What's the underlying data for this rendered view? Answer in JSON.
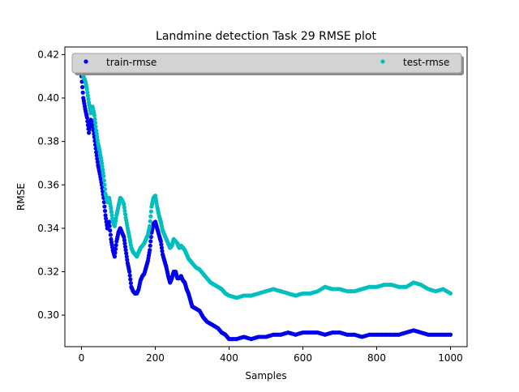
{
  "chart_data": {
    "type": "scatter",
    "title": "Landmine detection Task 29 RMSE plot",
    "xlabel": "Samples",
    "ylabel": "RMSE",
    "xlim": [
      -45,
      1045
    ],
    "ylim": [
      0.2855,
      0.4235
    ],
    "xticks": [
      0,
      200,
      400,
      600,
      800,
      1000
    ],
    "yticks": [
      0.3,
      0.32,
      0.34,
      0.36,
      0.38,
      0.4,
      0.42
    ],
    "xtick_labels": [
      "0",
      "200",
      "400",
      "600",
      "800",
      "1000"
    ],
    "ytick_labels": [
      "0.30",
      "0.32",
      "0.34",
      "0.36",
      "0.38",
      "0.40",
      "0.42"
    ],
    "grid": false,
    "legend_position": "top (spanning)",
    "series": [
      {
        "name": "train-rmse",
        "color": "#0000ee",
        "x": [
          0,
          5,
          10,
          15,
          20,
          25,
          30,
          35,
          40,
          45,
          50,
          55,
          60,
          65,
          70,
          75,
          80,
          85,
          90,
          95,
          100,
          105,
          110,
          115,
          120,
          125,
          130,
          135,
          140,
          145,
          150,
          155,
          160,
          165,
          170,
          175,
          180,
          185,
          190,
          195,
          200,
          205,
          210,
          215,
          220,
          225,
          230,
          235,
          240,
          245,
          250,
          255,
          260,
          265,
          270,
          275,
          280,
          285,
          290,
          295,
          300,
          310,
          320,
          330,
          340,
          350,
          360,
          370,
          380,
          390,
          400,
          420,
          440,
          460,
          480,
          500,
          520,
          540,
          560,
          580,
          600,
          620,
          640,
          660,
          680,
          700,
          720,
          740,
          760,
          780,
          800,
          820,
          840,
          860,
          880,
          900,
          920,
          940,
          960,
          980,
          1000
        ],
        "values": [
          0.41,
          0.4,
          0.395,
          0.391,
          0.384,
          0.39,
          0.388,
          0.382,
          0.375,
          0.369,
          0.365,
          0.36,
          0.354,
          0.346,
          0.34,
          0.343,
          0.335,
          0.33,
          0.327,
          0.334,
          0.338,
          0.34,
          0.338,
          0.336,
          0.33,
          0.324,
          0.32,
          0.313,
          0.311,
          0.31,
          0.31,
          0.312,
          0.316,
          0.318,
          0.319,
          0.322,
          0.325,
          0.33,
          0.338,
          0.342,
          0.343,
          0.34,
          0.337,
          0.334,
          0.328,
          0.325,
          0.322,
          0.318,
          0.315,
          0.317,
          0.32,
          0.32,
          0.317,
          0.317,
          0.318,
          0.316,
          0.315,
          0.312,
          0.31,
          0.307,
          0.304,
          0.303,
          0.302,
          0.299,
          0.297,
          0.296,
          0.295,
          0.294,
          0.292,
          0.291,
          0.289,
          0.289,
          0.29,
          0.289,
          0.29,
          0.29,
          0.291,
          0.291,
          0.292,
          0.291,
          0.292,
          0.292,
          0.292,
          0.291,
          0.292,
          0.292,
          0.291,
          0.291,
          0.29,
          0.291,
          0.291,
          0.291,
          0.291,
          0.291,
          0.292,
          0.293,
          0.292,
          0.291,
          0.291,
          0.291,
          0.291
        ]
      },
      {
        "name": "test-rmse",
        "color": "#00bfbf",
        "x": [
          0,
          5,
          10,
          15,
          20,
          25,
          30,
          35,
          40,
          45,
          50,
          55,
          60,
          65,
          70,
          75,
          80,
          85,
          90,
          95,
          100,
          105,
          110,
          115,
          120,
          125,
          130,
          135,
          140,
          145,
          150,
          155,
          160,
          165,
          170,
          175,
          180,
          185,
          190,
          195,
          200,
          205,
          210,
          215,
          220,
          225,
          230,
          235,
          240,
          245,
          250,
          255,
          260,
          265,
          270,
          275,
          280,
          285,
          290,
          295,
          300,
          310,
          320,
          330,
          340,
          350,
          360,
          370,
          380,
          390,
          400,
          420,
          440,
          460,
          480,
          500,
          520,
          540,
          560,
          580,
          600,
          620,
          640,
          660,
          680,
          700,
          720,
          740,
          760,
          780,
          800,
          820,
          840,
          860,
          880,
          900,
          920,
          940,
          960,
          980,
          1000
        ],
        "values": [
          0.413,
          0.41,
          0.408,
          0.404,
          0.398,
          0.393,
          0.396,
          0.392,
          0.385,
          0.379,
          0.375,
          0.37,
          0.364,
          0.356,
          0.352,
          0.354,
          0.349,
          0.343,
          0.341,
          0.346,
          0.35,
          0.354,
          0.353,
          0.351,
          0.345,
          0.34,
          0.336,
          0.331,
          0.329,
          0.328,
          0.327,
          0.329,
          0.331,
          0.332,
          0.333,
          0.335,
          0.337,
          0.341,
          0.35,
          0.354,
          0.355,
          0.35,
          0.346,
          0.343,
          0.339,
          0.337,
          0.335,
          0.333,
          0.331,
          0.332,
          0.335,
          0.334,
          0.333,
          0.331,
          0.332,
          0.331,
          0.33,
          0.328,
          0.326,
          0.325,
          0.324,
          0.322,
          0.321,
          0.319,
          0.317,
          0.315,
          0.314,
          0.313,
          0.312,
          0.31,
          0.309,
          0.308,
          0.309,
          0.309,
          0.31,
          0.311,
          0.312,
          0.311,
          0.31,
          0.309,
          0.31,
          0.31,
          0.311,
          0.313,
          0.312,
          0.312,
          0.311,
          0.311,
          0.312,
          0.313,
          0.313,
          0.314,
          0.314,
          0.313,
          0.313,
          0.315,
          0.314,
          0.312,
          0.311,
          0.312,
          0.31
        ]
      }
    ]
  }
}
